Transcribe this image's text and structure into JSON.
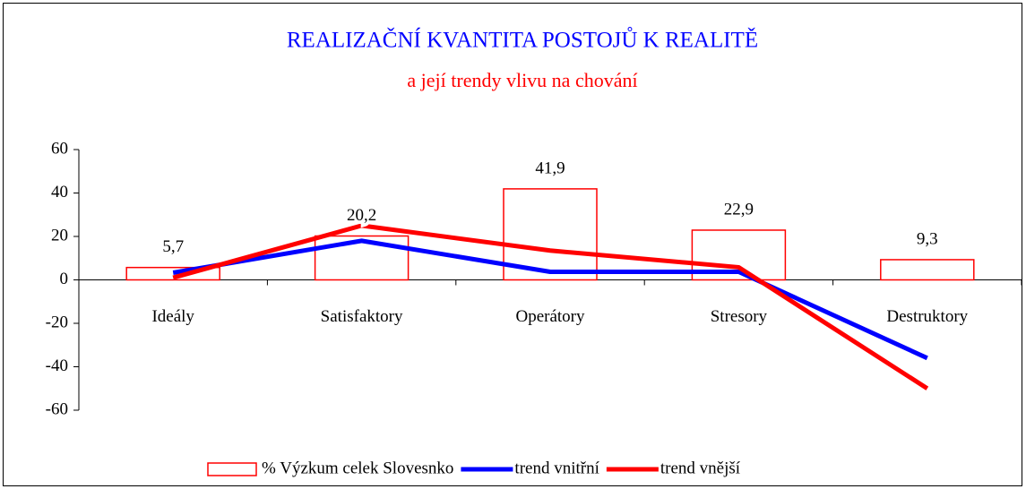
{
  "chart_data": {
    "type": "bar",
    "title": "REALIZAČNÍ KVANTITA POSTOJŮ K REALITĚ",
    "subtitle": "a její trendy vlivu na chování",
    "title_color": "#0000ff",
    "subtitle_color": "#ff0000",
    "categories": [
      "Ideály",
      "Satisfaktory",
      "Operátory",
      "Stresory",
      "Destruktory"
    ],
    "series": [
      {
        "name": "% Výzkum celek Slovesnko",
        "type": "bar",
        "color": "#ff0000",
        "values": [
          5.7,
          20.2,
          41.9,
          22.9,
          9.3
        ],
        "value_labels": [
          "5,7",
          "20,2",
          "41,9",
          "22,9",
          "9,3"
        ]
      },
      {
        "name": "trend vnitřní",
        "type": "line",
        "color": "#0000ff",
        "values": [
          3.3,
          18,
          3.7,
          3.7,
          -36
        ]
      },
      {
        "name": "trend vnější",
        "type": "line",
        "color": "#ff0000",
        "values": [
          1,
          25,
          13.5,
          5.8,
          -50
        ]
      }
    ],
    "ylim": [
      -60,
      60
    ],
    "yticks": [
      60,
      40,
      20,
      0,
      -20,
      -40,
      -60
    ],
    "legend": "bottom"
  }
}
